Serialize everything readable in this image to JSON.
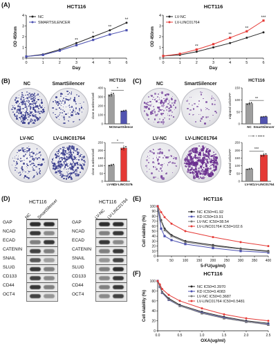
{
  "panels": {
    "A": "(A)",
    "B": "(B)",
    "C": "(C)",
    "D": "(D)",
    "E": "(E)",
    "F": "(F)"
  },
  "colors": {
    "black": "#222222",
    "blue": "#4a4fb0",
    "red": "#e53935",
    "gray": "#777777",
    "bar_nc": "#9e9e9e",
    "bar_blue": "#5153b0",
    "bar_red": "#e53935",
    "colony": "#3b3f8f"
  },
  "chart_data": [
    {
      "id": "A_left",
      "type": "line",
      "title": "HCT116",
      "xlabel": "Day",
      "ylabel": "OD 450nm",
      "x": [
        0,
        1,
        2,
        3,
        4,
        5,
        6
      ],
      "xlim": [
        0,
        6
      ],
      "ylim": [
        0,
        4
      ],
      "yticks": [
        "0",
        "1",
        "2",
        "3",
        "4"
      ],
      "xticks": [
        "0",
        "1",
        "2",
        "3",
        "4",
        "5",
        "6"
      ],
      "series": [
        {
          "name": "NC",
          "values": [
            0.15,
            0.35,
            0.8,
            1.4,
            2.0,
            2.6,
            3.3
          ],
          "color": "#222222"
        },
        {
          "name": "SMARTSILENCER",
          "values": [
            0.15,
            0.3,
            0.7,
            1.2,
            1.7,
            2.2,
            2.6
          ],
          "color": "#4a4fb0"
        }
      ],
      "annotations": [
        "**",
        "*",
        "**",
        "**"
      ]
    },
    {
      "id": "A_right",
      "type": "line",
      "title": "HCT116",
      "xlabel": "Day",
      "ylabel": "OD 450nm",
      "x": [
        0,
        1,
        2,
        3,
        4,
        5,
        6
      ],
      "xlim": [
        0,
        6
      ],
      "ylim": [
        0,
        4
      ],
      "yticks": [
        "0",
        "1",
        "2",
        "3",
        "4"
      ],
      "xticks": [
        "0",
        "1",
        "2",
        "3",
        "4",
        "5",
        "6"
      ],
      "series": [
        {
          "name": "LV-NC",
          "values": [
            0.2,
            0.3,
            0.6,
            1.0,
            1.4,
            1.9,
            2.4
          ],
          "color": "#222222"
        },
        {
          "name": "LV-LINC01764",
          "values": [
            0.2,
            0.4,
            0.8,
            1.3,
            1.9,
            2.5,
            3.5
          ],
          "color": "#e53935"
        }
      ],
      "annotations": [
        "**",
        "**",
        "**",
        "***"
      ]
    },
    {
      "id": "B_top",
      "type": "bar",
      "title": "HCT116",
      "categories": [
        "NC",
        "SmartSilencer"
      ],
      "values": [
        325,
        145
      ],
      "ylabel": "clone numbers/well",
      "ylim": [
        0,
        400
      ],
      "yticks": [
        "0",
        "100",
        "200",
        "300",
        "400"
      ],
      "colors": [
        "#9e9e9e",
        "#5153b0"
      ],
      "annotations": [
        "*"
      ]
    },
    {
      "id": "B_bottom",
      "type": "bar",
      "title": "",
      "categories": [
        "LV-NC",
        "LV-LINC01764"
      ],
      "values": [
        105,
        215
      ],
      "ylabel": "clone numbers/well",
      "ylim": [
        0,
        250
      ],
      "yticks": [
        "0",
        "50",
        "100",
        "150",
        "200",
        "250"
      ],
      "colors": [
        "#9e9e9e",
        "#e53935"
      ],
      "annotations": [
        "*"
      ]
    },
    {
      "id": "C_top",
      "type": "bar",
      "title": "HCT116",
      "categories": [
        "NC",
        "SmartSilencer"
      ],
      "values": [
        85,
        30
      ],
      "ylabel": "migrated cells/HPF",
      "ylim": [
        0,
        150
      ],
      "yticks": [
        "0",
        "50",
        "100",
        "150"
      ],
      "colors": [
        "#9e9e9e",
        "#5153b0"
      ],
      "annotations": [
        "**"
      ]
    },
    {
      "id": "C_bottom",
      "type": "bar",
      "title": "HCT116",
      "categories": [
        "LV-NC",
        "LV-LINC01764"
      ],
      "values": [
        80,
        170
      ],
      "ylabel": "migrated cells/HPF",
      "ylim": [
        0,
        250
      ],
      "yticks": [
        "0",
        "50",
        "100",
        "150",
        "200",
        "250"
      ],
      "colors": [
        "#9e9e9e",
        "#e53935"
      ],
      "annotations": [
        "***"
      ]
    },
    {
      "id": "E",
      "type": "line",
      "title": "HCT116",
      "xlabel": "5-FU(ug/ml)",
      "ylabel": "Cell viability (%)",
      "x": [
        0,
        12.5,
        25,
        50,
        100,
        200,
        300,
        400
      ],
      "xlim": [
        0,
        400
      ],
      "ylim": [
        0,
        100
      ],
      "xticks": [
        "0",
        "50",
        "100",
        "150",
        "200",
        "250",
        "300",
        "350",
        "400"
      ],
      "yticks": [
        "0",
        "10",
        "20",
        "30",
        "40",
        "50",
        "60",
        "70",
        "80",
        "90",
        "100"
      ],
      "series": [
        {
          "name": "NC IC50=41.92",
          "values": [
            100,
            72,
            55,
            42,
            30,
            22,
            15,
            10
          ],
          "color": "#222222"
        },
        {
          "name": "KD IC50=19.91",
          "values": [
            100,
            55,
            40,
            32,
            24,
            16,
            10,
            7
          ],
          "color": "#4a4fb0"
        },
        {
          "name": "LV-NC IC50=38.54",
          "values": [
            100,
            70,
            52,
            40,
            28,
            20,
            14,
            9
          ],
          "color": "#777777"
        },
        {
          "name": "LV-LINC01764 IC50=102.6",
          "values": [
            100,
            88,
            78,
            65,
            50,
            38,
            28,
            20
          ],
          "color": "#e53935"
        }
      ]
    },
    {
      "id": "F",
      "type": "line",
      "title": "HCT116",
      "xlabel": "OXA(ug/ml)",
      "ylabel": "Cell viability (%)",
      "x": [
        0,
        0.05,
        0.1,
        0.25,
        0.5,
        1,
        1.5,
        2,
        2.5
      ],
      "xlim": [
        0,
        2.5
      ],
      "ylim": [
        0,
        100
      ],
      "xticks": [
        "0.0",
        "0.5",
        "1.0",
        "1.5",
        "2.0",
        "2.5"
      ],
      "yticks": [
        "0",
        "20",
        "40",
        "60",
        "80",
        "100"
      ],
      "series": [
        {
          "name": "NC IC50=0.3970",
          "values": [
            100,
            90,
            78,
            65,
            52,
            38,
            28,
            20,
            15
          ],
          "color": "#222222"
        },
        {
          "name": "KD IC50=0.4083",
          "values": [
            100,
            88,
            76,
            62,
            50,
            36,
            26,
            18,
            13
          ],
          "color": "#4a4fb0"
        },
        {
          "name": "LV-NC IC50=0.3687",
          "values": [
            100,
            89,
            77,
            63,
            50,
            35,
            25,
            18,
            12
          ],
          "color": "#777777"
        },
        {
          "name": "LV-LINC01764 IC50=0.5481",
          "values": [
            100,
            93,
            84,
            72,
            60,
            45,
            33,
            25,
            20
          ],
          "color": "#e53935"
        }
      ]
    }
  ],
  "panel_b": {
    "labels_top": [
      "NC",
      "SmartSilencer"
    ],
    "labels_bottom": [
      "LV-NC",
      "LV-LINC01764"
    ]
  },
  "panel_c": {
    "labels_top": [
      "NC",
      "SmartSilencer"
    ],
    "labels_bottom": [
      "LV-NC",
      "LV-LINC01764"
    ]
  },
  "western": {
    "left": {
      "title": "HCT116",
      "lanes": [
        "NC",
        "SmartSilencer"
      ]
    },
    "right": {
      "title": "HCT116",
      "lanes": [
        "LV-NC",
        "LV-LINC01764"
      ]
    },
    "rows": [
      "GAP",
      "NCAD",
      "ECAD",
      "CATENIN",
      "SNAIL",
      "SLUG",
      "CD133",
      "CD44",
      "OCT4"
    ]
  }
}
